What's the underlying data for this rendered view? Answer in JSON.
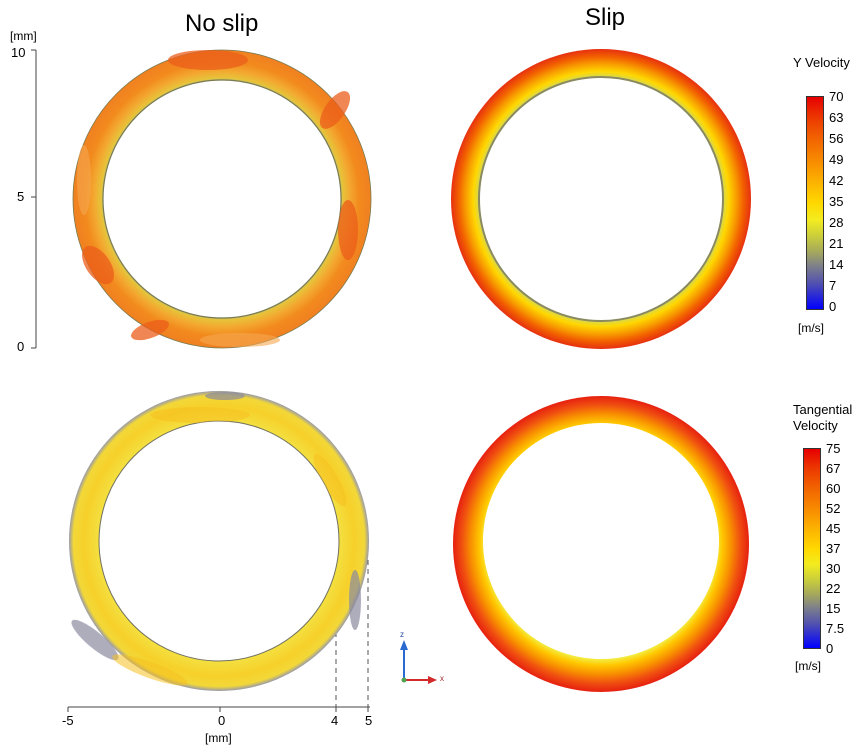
{
  "titles": {
    "left": "No slip",
    "right": "Slip"
  },
  "y_axis": {
    "unit": "[mm]",
    "ticks": [
      "10",
      "5",
      "0"
    ]
  },
  "x_axis": {
    "unit": "[mm]",
    "ticks": [
      "-5",
      "0",
      "4",
      "5"
    ]
  },
  "legend_top": {
    "title": "Y Velocity",
    "unit": "[m/s]",
    "labels": [
      "70",
      "63",
      "56",
      "49",
      "42",
      "35",
      "28",
      "21",
      "14",
      "7",
      "0"
    ]
  },
  "legend_bottom": {
    "title_line1": "Tangential",
    "title_line2": "Velocity",
    "unit": "[m/s]",
    "labels": [
      "75",
      "67",
      "60",
      "52",
      "45",
      "37",
      "30",
      "22",
      "15",
      "7.5",
      "0"
    ]
  },
  "triad": {
    "up": "z",
    "right": "x"
  },
  "colors": {
    "scale": [
      "#e60000",
      "#ec3a00",
      "#f26500",
      "#f88a00",
      "#fcb200",
      "#ffd800",
      "#f3ec20",
      "#c8cc3c",
      "#a5a85c",
      "#7c7e8c",
      "#5050b0",
      "#2828d8",
      "#0000ff"
    ],
    "ring_no_slip_y": "#f28a1e",
    "ring_no_slip_t": "#f7d02a",
    "ring_slip_y": "#ec3a10",
    "ring_slip_t": "#ec3a10",
    "inner_edge_gray": "#9a9a6a"
  }
}
